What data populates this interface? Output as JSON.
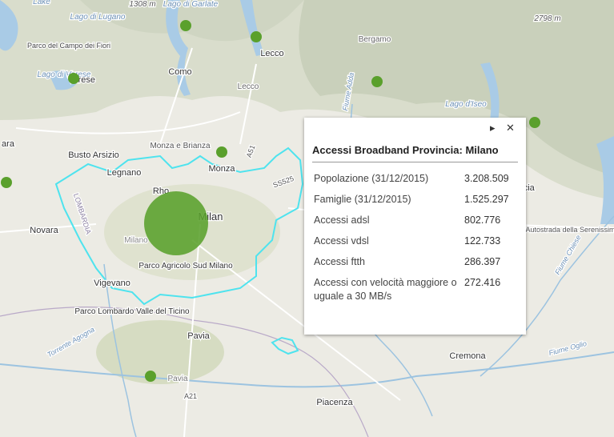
{
  "map_labels": [
    "Lake",
    "1308 m",
    "Lago di Garlate",
    "Lago di Lugano",
    "Parco del Campo dei Fiori",
    "Lago di Varese",
    "Varese",
    "Como",
    "Lecco",
    "Lecco",
    "Bergamo",
    "2798 m",
    "Lago d'Iseo",
    "Monza e Brianza",
    "Monza",
    "Busto Arsizio",
    "Legnano",
    "Rho",
    "Milan",
    "Milano",
    "Novara",
    "LOMBARDIA",
    "Parco Agricolo Sud Milano",
    "Vigevano",
    "Parco Lombardo Valle del Ticino",
    "Pavia",
    "Pavia",
    "Cremona",
    "Piacenza",
    "Torrente Agogna",
    "Fiume Adda",
    "Fiume Oglio",
    "Fiume Chiese",
    "Autostrada della Serenissima",
    "SS525",
    "A51",
    "A21",
    "scia",
    "ara"
  ],
  "popup": {
    "title": "Accessi Broadband Provincia: Milano",
    "rows": [
      [
        "Popolazione (31/12/2015)",
        "3.208.509"
      ],
      [
        "Famiglie (31/12/2015)",
        "1.525.297"
      ],
      [
        "Accessi adsl",
        "802.776"
      ],
      [
        "Accessi vdsl",
        "122.733"
      ],
      [
        "Accessi ftth",
        "286.397"
      ],
      [
        "Accessi con velocità maggiore o uguale a 30 MB/s",
        "272.416"
      ]
    ]
  }
}
